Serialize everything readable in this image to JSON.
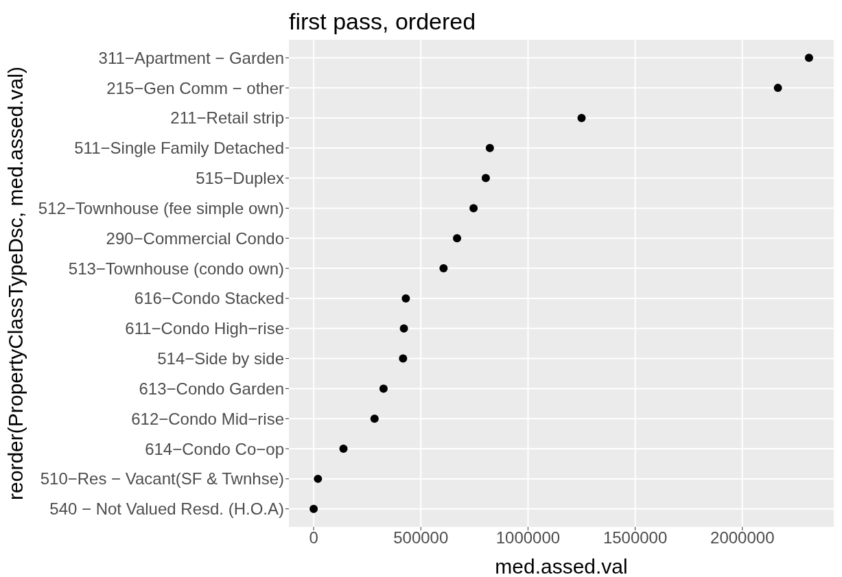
{
  "chart_data": {
    "type": "scatter",
    "orientation": "horizontal",
    "title": "first pass, ordered",
    "xlabel": "med.assed.val",
    "ylabel": "reorder(PropertyClassTypeDsc, med.assed.val)",
    "categories": [
      "311−Apartment − Garden",
      "215−Gen Comm − other",
      "211−Retail strip",
      "511−Single Family Detached",
      "515−Duplex",
      "512−Townhouse (fee simple own)",
      "290−Commercial Condo",
      "513−Townhouse (condo own)",
      "616−Condo Stacked",
      "611−Condo High−rise",
      "514−Side by side",
      "613−Condo Garden",
      "612−Condo Mid−rise",
      "614−Condo Co−op",
      "510−Res − Vacant(SF & Twnhse)",
      "540 − Not Valued Resd. (H.O.A)"
    ],
    "values": [
      2311000,
      2166000,
      1250000,
      822000,
      803000,
      746000,
      669000,
      606000,
      430000,
      421000,
      417000,
      326000,
      284000,
      139000,
      20000,
      0
    ],
    "color": "#000000",
    "marker": "circle",
    "grid": true,
    "xlim": [
      -115550,
      2426550
    ],
    "xticks": [
      0,
      500000,
      1000000,
      1500000,
      2000000
    ]
  }
}
